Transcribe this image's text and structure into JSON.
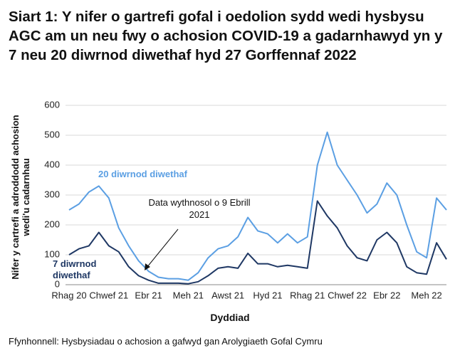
{
  "chart_data": {
    "type": "line",
    "title": "Siart 1: Y nifer o gartrefi gofal i oedolion sydd wedi hysbysu AGC am un neu fwy o achosion COVID-19 a gadarnhawyd yn y 7 neu 20 diwrnod diwethaf hyd 27 Gorffennaf 2022",
    "x_label": "Dyddiad",
    "y_label": "Nifer y cartrefi a adroddodd achosion wedi'u cadarnhau",
    "source": "Ffynhonnell: Hysbysiadau o achosion a gafwyd gan Arolygiaeth Gofal Cymru",
    "annotation": "Data wythnosol o 9 Ebrill 2021",
    "categories": [
      "Rhag 20",
      null,
      null,
      null,
      "Chwef 21",
      null,
      null,
      null,
      "Ebr 21",
      null,
      null,
      null,
      "Meh 21",
      null,
      null,
      null,
      "Awst 21",
      null,
      null,
      null,
      "Hyd 21",
      null,
      null,
      null,
      "Rhag 21",
      null,
      null,
      null,
      "Chwef 22",
      null,
      null,
      null,
      "Ebr 22",
      null,
      null,
      null,
      "Meh 22",
      null,
      null
    ],
    "series": [
      {
        "name": "20 diwrnod diwethaf",
        "color": "#5b9fe3",
        "values": [
          250,
          270,
          310,
          330,
          290,
          190,
          130,
          80,
          45,
          25,
          20,
          20,
          15,
          40,
          90,
          120,
          130,
          160,
          225,
          180,
          170,
          140,
          170,
          140,
          160,
          400,
          510,
          400,
          350,
          300,
          240,
          270,
          340,
          300,
          200,
          110,
          90,
          290,
          250
        ]
      },
      {
        "name": "7 diwrnod diwethaf",
        "color": "#1f3864",
        "values": [
          100,
          120,
          130,
          175,
          130,
          110,
          60,
          30,
          15,
          5,
          5,
          5,
          3,
          10,
          30,
          55,
          60,
          55,
          105,
          70,
          70,
          60,
          65,
          60,
          55,
          280,
          230,
          190,
          130,
          90,
          80,
          150,
          175,
          140,
          60,
          40,
          35,
          140,
          85
        ]
      }
    ],
    "ylim": [
      0,
      600
    ],
    "yticks": [
      0,
      100,
      200,
      300,
      400,
      500,
      600
    ],
    "grid": true
  }
}
